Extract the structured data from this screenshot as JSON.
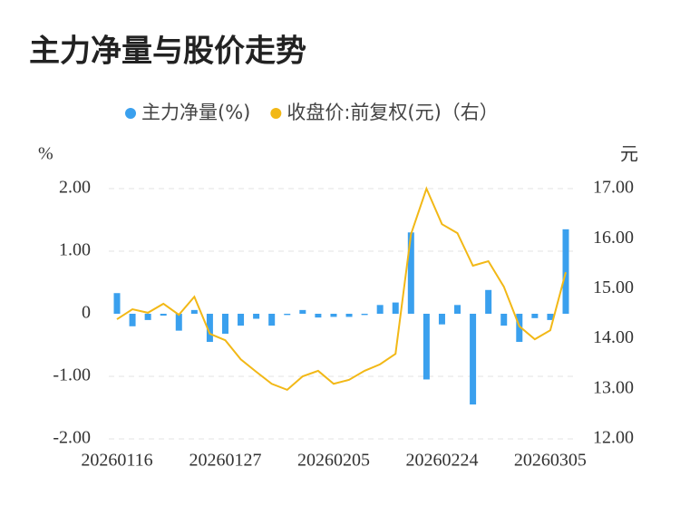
{
  "chart_data": {
    "type": "bar-line",
    "title": "主力净量与股价走势",
    "y_label": "%",
    "y2_label": "元",
    "categories": [
      "20260116",
      null,
      null,
      null,
      null,
      null,
      null,
      "20260127",
      null,
      null,
      null,
      null,
      null,
      null,
      "20260205",
      null,
      null,
      null,
      null,
      null,
      null,
      "20260224",
      null,
      null,
      null,
      null,
      null,
      null,
      "20260305",
      null
    ],
    "series": [
      {
        "name": "主力净量(%)",
        "type": "bar",
        "color": "#3aa0ee",
        "values": [
          0.33,
          -0.2,
          -0.1,
          -0.03,
          -0.27,
          0.06,
          -0.45,
          -0.32,
          -0.19,
          -0.08,
          -0.19,
          -0.02,
          0.06,
          -0.06,
          -0.05,
          -0.05,
          -0.02,
          0.14,
          0.18,
          1.3,
          -1.05,
          -0.17,
          0.14,
          -1.45,
          0.38,
          -0.19,
          -0.45,
          -0.07,
          -0.1,
          1.35
        ]
      },
      {
        "name": "收盘价:前复权(元)（右）",
        "type": "line",
        "axis": "y2",
        "color": "#f2b816",
        "values": [
          14.39,
          14.59,
          14.52,
          14.7,
          14.48,
          14.84,
          14.1,
          13.97,
          13.59,
          13.34,
          13.1,
          12.98,
          13.25,
          13.36,
          13.1,
          13.18,
          13.36,
          13.49,
          13.7,
          16.09,
          17.0,
          16.29,
          16.11,
          15.46,
          15.55,
          15.04,
          14.25,
          13.99,
          14.17,
          15.33
        ]
      }
    ],
    "ylim": [
      -2,
      2
    ],
    "yticks": [
      {
        "value": 2,
        "label": "2.00"
      },
      {
        "value": 1,
        "label": "1.00"
      },
      0,
      {
        "value": -1,
        "label": "-1.00"
      },
      {
        "value": -2,
        "label": "-2.00"
      }
    ],
    "y2lim": [
      12,
      17
    ],
    "y2ticks": [
      {
        "value": 17,
        "label": "17.00"
      },
      {
        "value": 16,
        "label": "16.00"
      },
      {
        "value": 15,
        "label": "15.00"
      },
      {
        "value": 14,
        "label": "14.00"
      },
      {
        "value": 13,
        "label": "13.00"
      },
      {
        "value": 12,
        "label": "12.00"
      }
    ],
    "grid": true,
    "legend": "top"
  }
}
